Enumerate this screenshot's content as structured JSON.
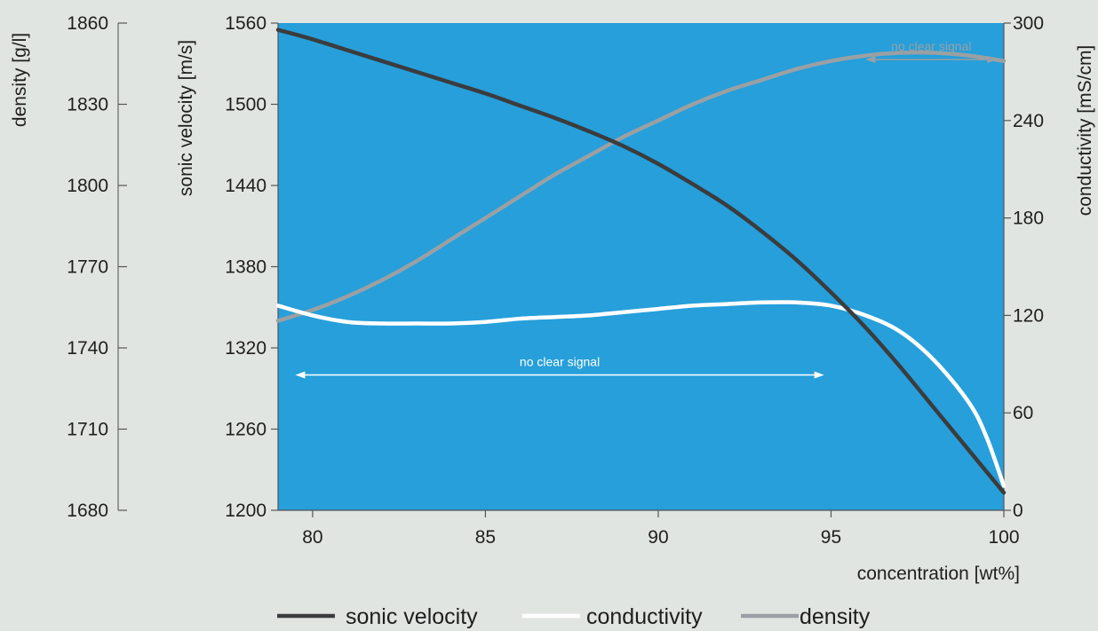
{
  "chart_data": {
    "type": "line",
    "xlabel": "concentration [wt%]",
    "xlim": [
      79,
      100
    ],
    "x_ticks": [
      "80",
      "85",
      "90",
      "95",
      "100"
    ],
    "y_axes": {
      "density": {
        "label": "density [g/l]",
        "range": [
          1680,
          1860
        ],
        "ticks": [
          "1680",
          "1710",
          "1740",
          "1770",
          "1800",
          "1830",
          "1860"
        ]
      },
      "sonic_velocity": {
        "label": "sonic velocity [m/s]",
        "range": [
          1200,
          1560
        ],
        "ticks": [
          "1200",
          "1260",
          "1320",
          "1380",
          "1440",
          "1500",
          "1560"
        ]
      },
      "conductivity": {
        "label": "conductivity [mS/cm]",
        "range": [
          0,
          300
        ],
        "ticks": [
          "0",
          "60",
          "120",
          "180",
          "240",
          "300"
        ]
      }
    },
    "series": [
      {
        "name": "sonic velocity",
        "axis": "sonic_velocity",
        "color": "#3b3c3d",
        "x": [
          79,
          80,
          81,
          82,
          83,
          84,
          85,
          86,
          87,
          88,
          89,
          90,
          91,
          92,
          93,
          94,
          95,
          96,
          97,
          98,
          99,
          100
        ],
        "values": [
          1555,
          1548,
          1540,
          1532,
          1524,
          1516,
          1508,
          1499,
          1490,
          1480,
          1469,
          1456,
          1441,
          1425,
          1406,
          1385,
          1361,
          1335,
          1306,
          1275,
          1244,
          1213
        ]
      },
      {
        "name": "conductivity",
        "axis": "conductivity",
        "color": "#ffffff",
        "x": [
          79,
          80,
          81,
          82,
          83,
          84,
          85,
          86,
          87,
          88,
          89,
          90,
          91,
          92,
          93,
          94,
          95,
          96,
          97,
          98,
          99,
          99.5,
          100
        ],
        "values": [
          126,
          120,
          116,
          115,
          115,
          115,
          116,
          118,
          119,
          120,
          122,
          124,
          126,
          127,
          128,
          128,
          126,
          120,
          110,
          92,
          66,
          45,
          15
        ]
      },
      {
        "name": "density",
        "axis": "density",
        "color": "#9aa0a3",
        "x": [
          79,
          80,
          81,
          82,
          83,
          84,
          85,
          86,
          87,
          88,
          89,
          90,
          91,
          92,
          93,
          94,
          95,
          96,
          97,
          98,
          99,
          100
        ],
        "values": [
          1750,
          1754,
          1759,
          1765,
          1772,
          1780,
          1788,
          1796,
          1804,
          1811,
          1818,
          1824,
          1830,
          1835,
          1839,
          1843,
          1846,
          1848,
          1849,
          1849,
          1848,
          1846
        ]
      }
    ],
    "annotations": [
      {
        "text": "no clear signal",
        "x_range": [
          79.5,
          94.8
        ],
        "axis": "sonic_velocity",
        "y": 1300,
        "color": "#ffffff"
      },
      {
        "text": "no clear signal",
        "x_range": [
          96,
          99.8
        ],
        "axis": "sonic_velocity",
        "y": 1533,
        "color": "#9aa0a3"
      }
    ],
    "plot_background": "#269fdb",
    "page_background": "#e1e5e2",
    "legend_position": "bottom"
  }
}
